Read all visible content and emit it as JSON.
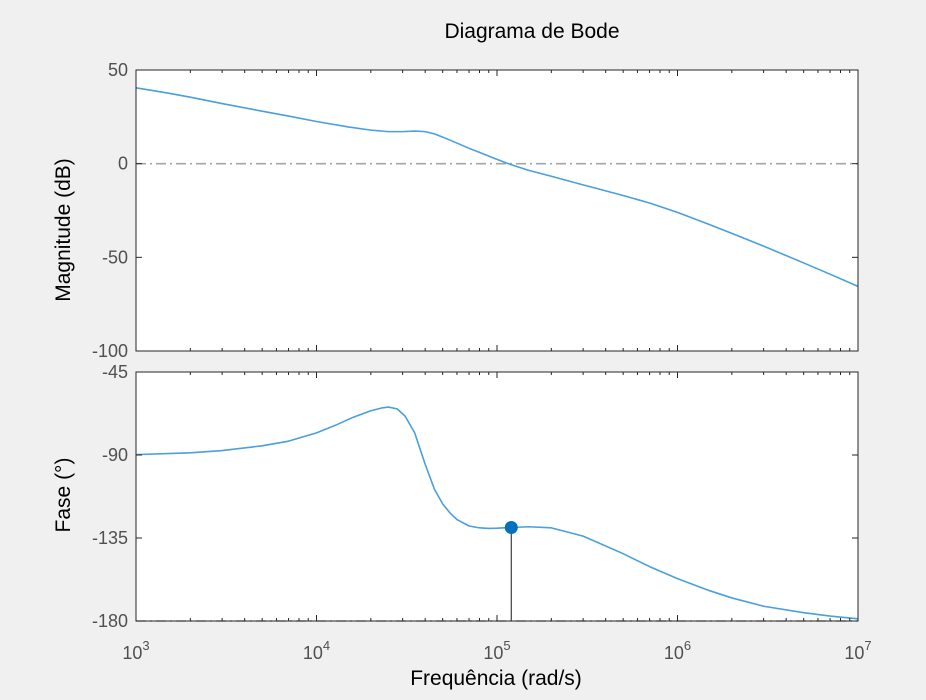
{
  "chart_data": {
    "type": "line",
    "title": "Diagrama de Bode",
    "xlabel": "Frequência (rad/s)",
    "xscale": "log",
    "xlim": [
      1000,
      10000000
    ],
    "x_ticks": [
      1000,
      10000,
      100000,
      1000000,
      10000000
    ],
    "x_tick_labels": [
      {
        "base": "10",
        "exp": "3"
      },
      {
        "base": "10",
        "exp": "4"
      },
      {
        "base": "10",
        "exp": "5"
      },
      {
        "base": "10",
        "exp": "6"
      },
      {
        "base": "10",
        "exp": "7"
      }
    ],
    "grid": false,
    "colors": {
      "line": "#4a9fdc",
      "marker": "#0072bd",
      "reference": "#a6a6a6",
      "background": "#f0f0f0",
      "axes_bg": "#ffffff"
    },
    "magnitude": {
      "ylabel": "Magnitude (dB)",
      "ylim": [
        -100,
        50
      ],
      "yticks": [
        -100,
        -50,
        0,
        50
      ],
      "reference_line": 0,
      "series": [
        {
          "x": [
            1000,
            1500,
            2000,
            3000,
            5000,
            7000,
            10000,
            15000,
            20000,
            25000,
            30000,
            35000,
            40000,
            45000,
            50000,
            60000,
            70000,
            80000,
            100000,
            120000,
            150000,
            200000,
            300000,
            500000,
            700000,
            1000000,
            1500000,
            2000000,
            3000000,
            5000000,
            7000000,
            10000000
          ],
          "y": [
            40.5,
            37.7,
            35.5,
            32.1,
            28.0,
            25.4,
            22.5,
            19.6,
            17.9,
            17.1,
            17.1,
            17.4,
            17.1,
            15.9,
            14.2,
            11.0,
            8.2,
            6.0,
            2.3,
            -0.6,
            -3.6,
            -6.7,
            -11.3,
            -17.0,
            -21.0,
            -26.0,
            -32.5,
            -37.2,
            -44.0,
            -53.0,
            -59.0,
            -65.5
          ]
        }
      ]
    },
    "phase": {
      "ylabel": "Fase (°)",
      "ylim": [
        -180,
        -45
      ],
      "yticks": [
        -180,
        -135,
        -90,
        -45
      ],
      "reference_line": -180,
      "series": [
        {
          "x": [
            1000,
            2000,
            3000,
            5000,
            7000,
            10000,
            13000,
            16000,
            20000,
            23000,
            25000,
            28000,
            31000,
            35000,
            40000,
            45000,
            50000,
            55000,
            60000,
            70000,
            80000,
            90000,
            100000,
            120000,
            150000,
            200000,
            300000,
            500000,
            700000,
            1000000,
            1500000,
            2000000,
            3000000,
            5000000,
            7000000,
            10000000
          ],
          "y": [
            -89.8,
            -88.8,
            -87.6,
            -85.0,
            -82.5,
            -78.0,
            -73.5,
            -69.5,
            -66.0,
            -64.5,
            -64.0,
            -65.0,
            -69.0,
            -78.0,
            -95.0,
            -108.5,
            -116.5,
            -121.5,
            -125.0,
            -128.5,
            -129.5,
            -129.8,
            -129.7,
            -129.3,
            -128.9,
            -129.5,
            -134.0,
            -143.5,
            -150.5,
            -157.0,
            -163.5,
            -167.5,
            -172.0,
            -175.5,
            -177.3,
            -178.8
          ]
        }
      ],
      "marker": {
        "x": 120000,
        "y": -129.3
      }
    }
  }
}
